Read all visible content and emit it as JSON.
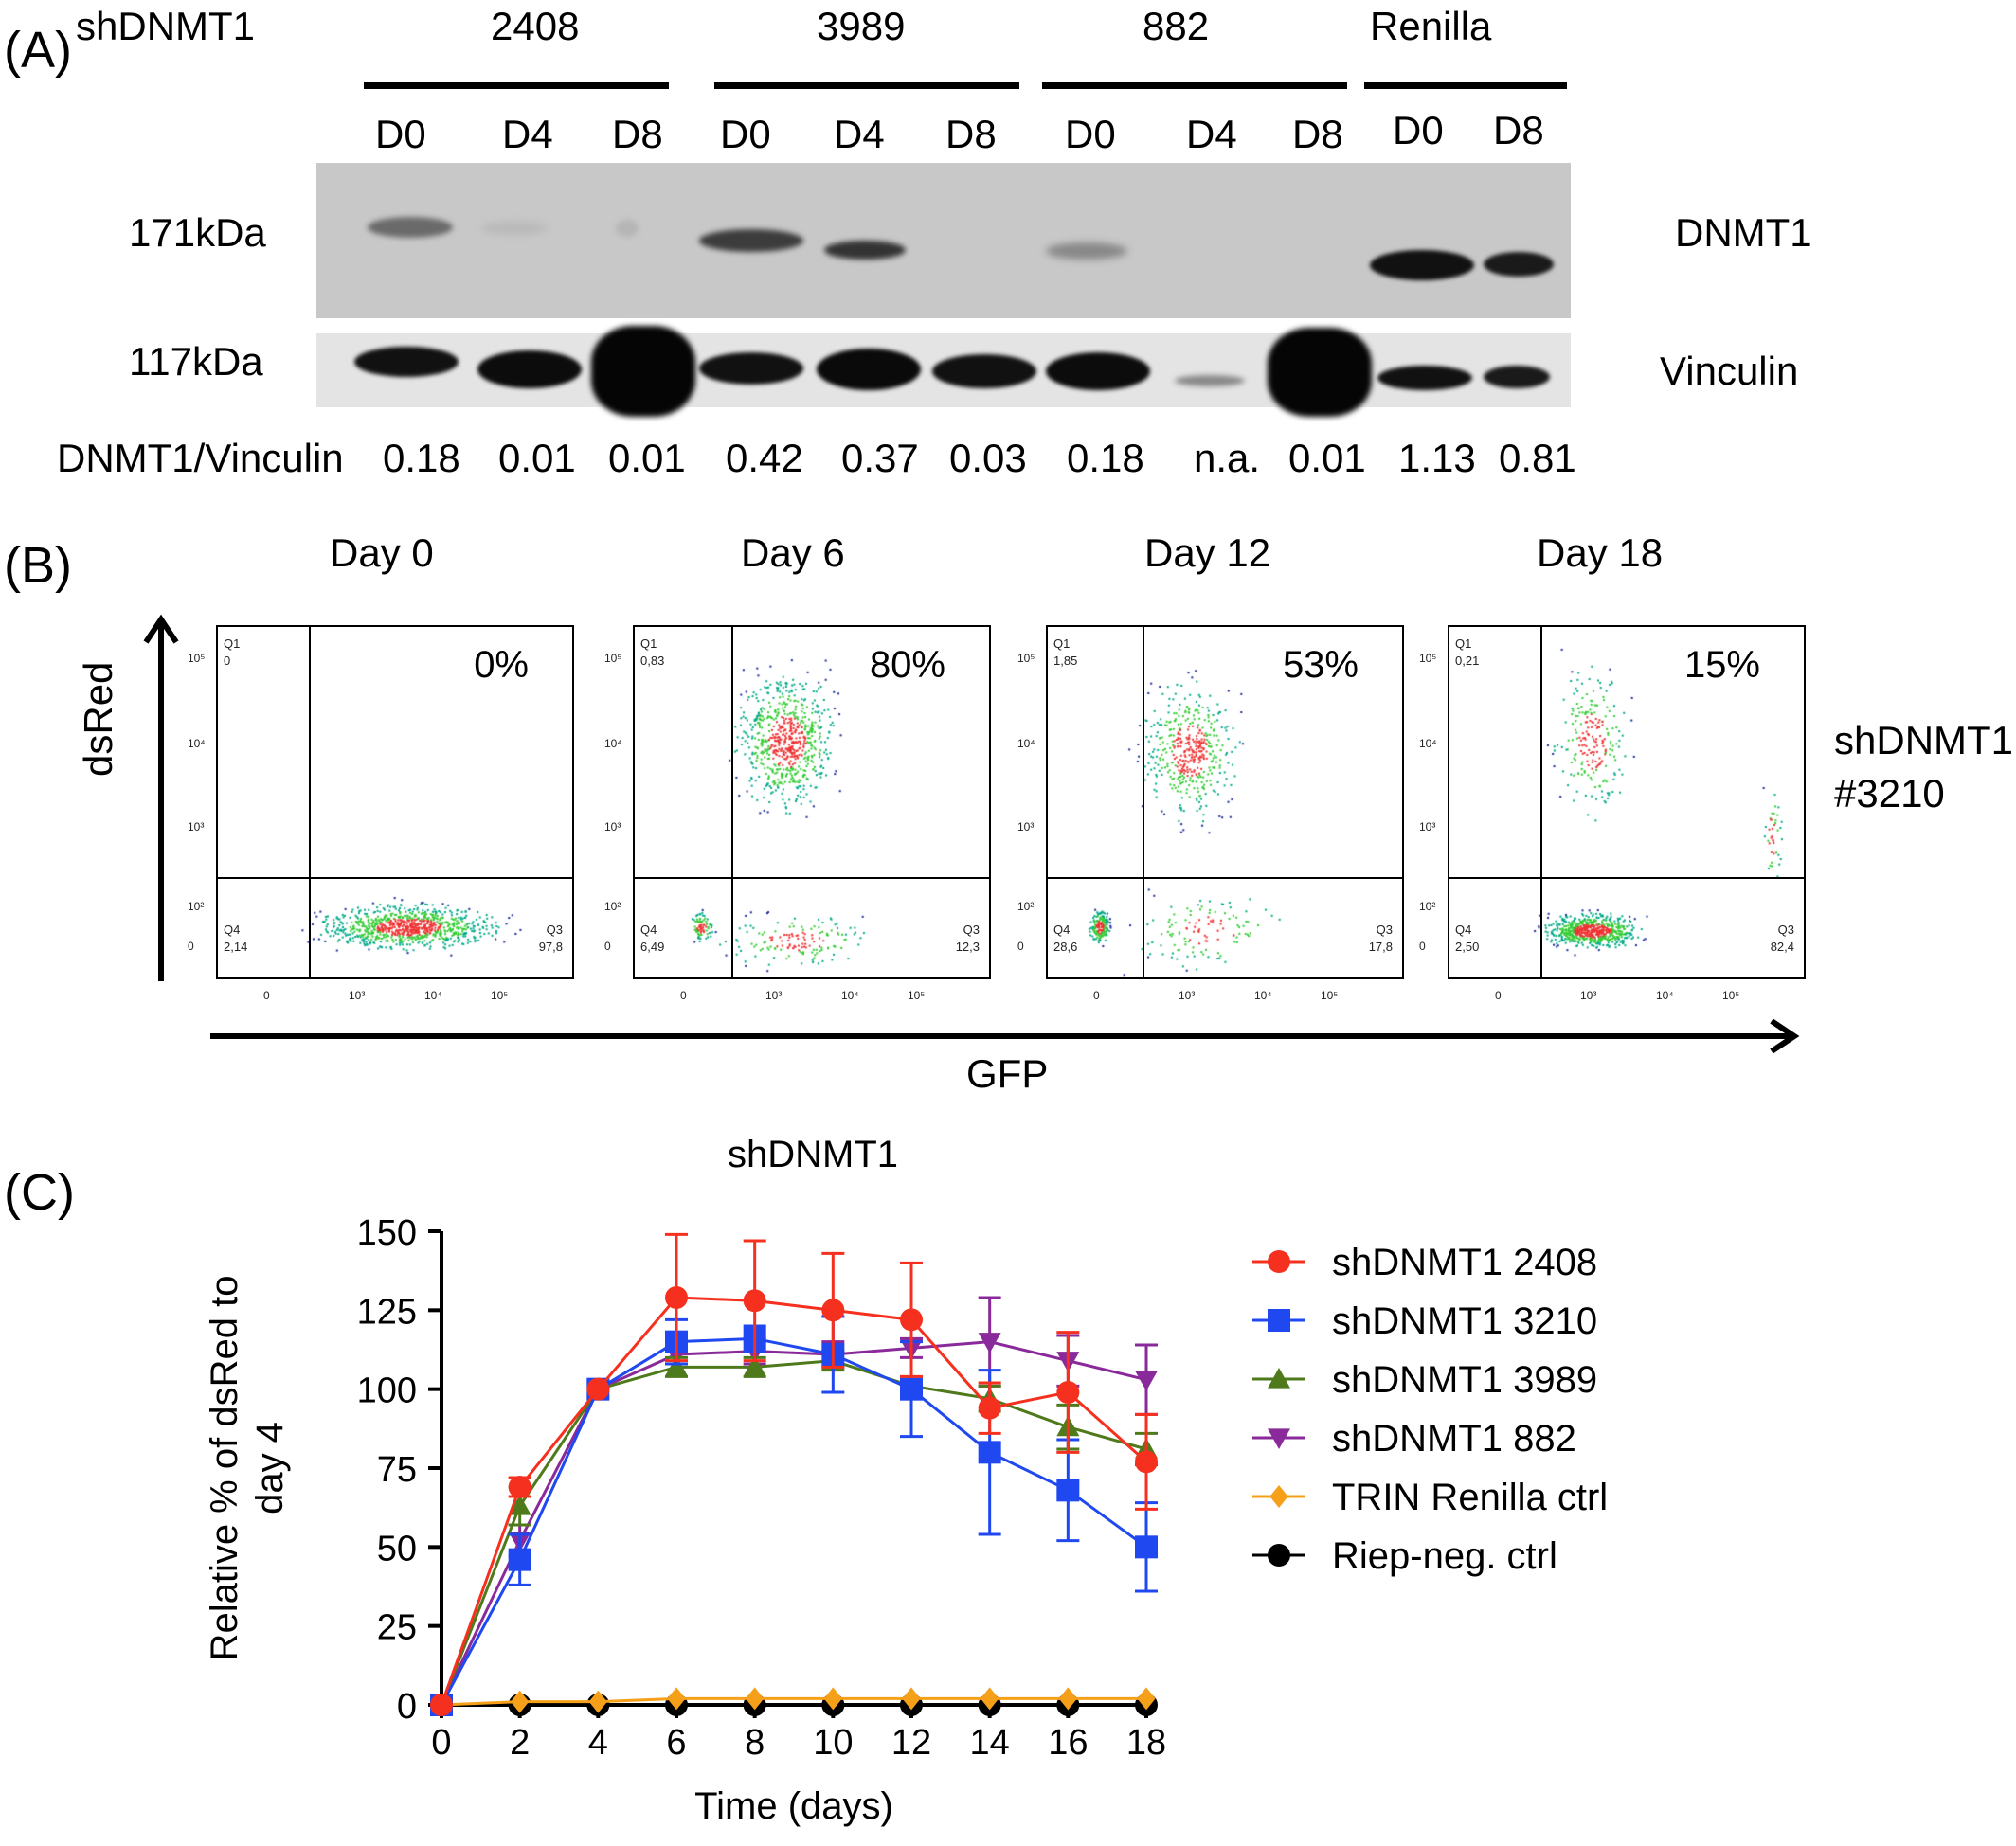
{
  "panel_a": {
    "letter": "(A)",
    "construct_label": "shDNMT1",
    "groups": [
      {
        "name": "2408",
        "lanes": [
          "D0",
          "D4",
          "D8"
        ]
      },
      {
        "name": "3989",
        "lanes": [
          "D0",
          "D4",
          "D8"
        ]
      },
      {
        "name": "882",
        "lanes": [
          "D0",
          "D4",
          "D8"
        ]
      },
      {
        "name": "Renilla",
        "lanes": [
          "D0",
          "D8"
        ]
      }
    ],
    "size_markers": [
      "171kDa",
      "117kDa"
    ],
    "protein_labels": [
      "DNMT1",
      "Vinculin"
    ],
    "ratio_label": "DNMT1/Vinculin",
    "ratios": [
      "0.18",
      "0.01",
      "0.01",
      "0.42",
      "0.37",
      "0.03",
      "0.18",
      "n.a.",
      "0.01",
      "1.13",
      "0.81"
    ]
  },
  "panel_b": {
    "letter": "(B)",
    "y_axis_label": "dsRed",
    "x_axis_label": "GFP",
    "side_label_line1": "shDNMT1",
    "side_label_line2": "#3210",
    "plots": [
      {
        "day": "Day 0",
        "percent": "0%",
        "q1_label": "Q1",
        "q1": "0",
        "q3_label": "Q3",
        "q3": "97,8",
        "q4_label": "Q4",
        "q4": "2,14"
      },
      {
        "day": "Day 6",
        "percent": "80%",
        "q1_label": "Q1",
        "q1": "0,83",
        "q3_label": "Q3",
        "q3": "12,3",
        "q4_label": "Q4",
        "q4": "6,49"
      },
      {
        "day": "Day 12",
        "percent": "53%",
        "q1_label": "Q1",
        "q1": "1,85",
        "q3_label": "Q3",
        "q3": "17,8",
        "q4_label": "Q4",
        "q4": "28,6"
      },
      {
        "day": "Day 18",
        "percent": "15%",
        "q1_label": "Q1",
        "q1": "0,21",
        "q3_label": "Q3",
        "q3": "82,4",
        "q4_label": "Q4",
        "q4": "2,50"
      }
    ],
    "y_ticks": [
      "10⁵",
      "10⁴",
      "10³",
      "10²",
      "0"
    ],
    "x_ticks": [
      "0",
      "10³",
      "10⁴",
      "10⁵"
    ]
  },
  "panel_c": {
    "letter": "(C)"
  },
  "chart_data": {
    "type": "line",
    "title": "shDNMT1",
    "xlabel": "Time (days)",
    "ylabel_line1": "Relative % of dsRed to",
    "ylabel_line2": "day 4",
    "x": [
      0,
      2,
      4,
      6,
      8,
      10,
      12,
      14,
      16,
      18
    ],
    "xlim": [
      0,
      18
    ],
    "ylim": [
      0,
      150
    ],
    "x_ticks": [
      0,
      2,
      4,
      6,
      8,
      10,
      12,
      14,
      16,
      18
    ],
    "y_ticks": [
      0,
      25,
      50,
      75,
      100,
      125,
      150
    ],
    "legend_position": "right",
    "series": [
      {
        "name": "shDNMT1 2408",
        "color": "#f5301e",
        "marker": "circle",
        "values": [
          0,
          69,
          100,
          129,
          128,
          125,
          122,
          94,
          99,
          77
        ],
        "errors": [
          0,
          3,
          0,
          20,
          19,
          18,
          18,
          8,
          19,
          15
        ]
      },
      {
        "name": "shDNMT1 3210",
        "color": "#1f48f0",
        "marker": "square",
        "values": [
          0,
          46,
          100,
          115,
          116,
          111,
          100,
          80,
          68,
          50
        ],
        "errors": [
          0,
          8,
          0,
          7,
          4,
          12,
          15,
          26,
          16,
          14
        ]
      },
      {
        "name": "shDNMT1 3989",
        "color": "#4f7a1c",
        "marker": "triangle-up",
        "values": [
          0,
          63,
          100,
          107,
          107,
          109,
          101,
          97,
          88,
          81
        ],
        "errors": [
          0,
          6,
          0,
          3,
          3,
          3,
          2,
          4,
          7,
          5
        ]
      },
      {
        "name": "shDNMT1 882",
        "color": "#8a2a9a",
        "marker": "triangle-down",
        "values": [
          0,
          52,
          100,
          111,
          112,
          111,
          113,
          115,
          109,
          103
        ],
        "errors": [
          0,
          5,
          0,
          3,
          4,
          4,
          3,
          14,
          8,
          11
        ]
      },
      {
        "name": "TRIN Renilla ctrl",
        "color": "#f6a01a",
        "marker": "diamond",
        "values": [
          0,
          1,
          1,
          2,
          2,
          2,
          2,
          2,
          2,
          2
        ],
        "errors": [
          0,
          0,
          0,
          0,
          0,
          0,
          0,
          0,
          0,
          0
        ]
      },
      {
        "name": "Riep-neg. ctrl",
        "color": "#000000",
        "marker": "circle",
        "values": [
          0,
          0,
          0,
          0,
          0,
          0,
          0,
          0,
          0,
          0
        ],
        "errors": [
          0,
          0,
          0,
          0,
          0,
          0,
          0,
          0,
          0,
          0
        ]
      }
    ]
  }
}
